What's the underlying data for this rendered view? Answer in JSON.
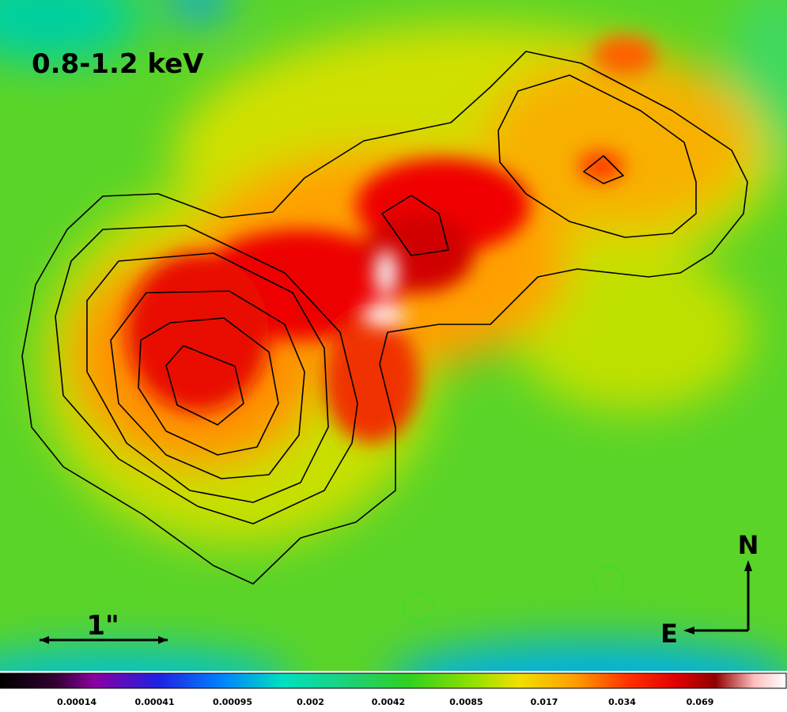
{
  "panel": {
    "label": "0.8-1.2 keV"
  },
  "scale_bar": {
    "label": "1\""
  },
  "compass": {
    "north": "N",
    "east": "E"
  },
  "colorbar": {
    "ticks": [
      "0.00014",
      "0.00041",
      "0.00095",
      "0.002",
      "0.0042",
      "0.0085",
      "0.017",
      "0.034",
      "0.069"
    ]
  }
}
